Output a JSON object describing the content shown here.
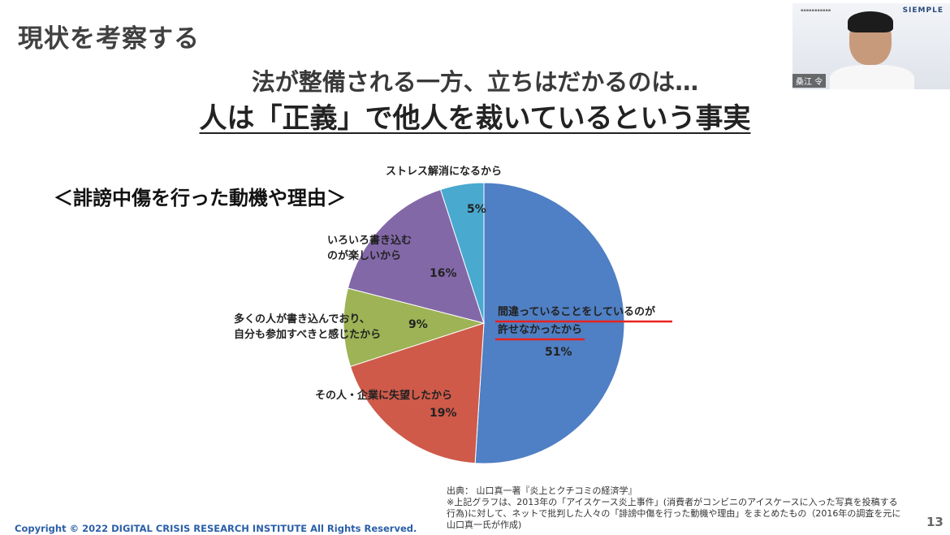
{
  "slide": {
    "title": "現状を考察する",
    "headline": "法が整備される一方、立ちはだかるのは…",
    "headline_strong": "人は「正義」で他人を裁いているという事実",
    "chart_heading": "＜誹謗中傷を行った動機や理由＞",
    "source_lines": [
      "出典：  山口真一著『炎上とクチコミの経済学』",
      "※上記グラフは、2013年の「アイスケース炎上事件」(消費者がコンビニのアイスケースに入った写真を投稿する",
      "行為)に対して、ネットで批判した人々の「誹謗中傷を行った動機や理由」をまとめたもの（2016年の調査を元に",
      "山口真一氏が作成)"
    ],
    "copyright": "Copyright © 2022 DIGITAL CRISIS RESEARCH INSTITUTE All Rights Reserved.",
    "page_number": "13"
  },
  "video": {
    "logo": "SIEMPLE",
    "participant_name": "桑江 令"
  },
  "colors": {
    "underline_red": "#e8231f",
    "copyright_blue": "#2a5fa8"
  },
  "chart_data": {
    "type": "pie",
    "title": "＜誹謗中傷を行った動機や理由＞",
    "slices": [
      {
        "label": "間違っていることをしているのが許せなかったから",
        "value": 51,
        "value_label": "51%",
        "color": "#4f7fc4"
      },
      {
        "label": "その人・企業に失望したから",
        "value": 19,
        "value_label": "19%",
        "color": "#cf5a4a"
      },
      {
        "label": "多くの人が書き込んでおり、自分も参加すべきと感じたから",
        "value": 9,
        "value_label": "9%",
        "color": "#9db355"
      },
      {
        "label": "いろいろ書き込むのが楽しいから",
        "value": 16,
        "value_label": "16%",
        "color": "#8368a8"
      },
      {
        "label": "ストレス解消になるから",
        "value": 5,
        "value_label": "5%",
        "color": "#49a9cf"
      }
    ],
    "start": "12 o'clock",
    "direction": "clockwise",
    "highlighted_label": "間違っていることをしているのが許せなかったから"
  }
}
